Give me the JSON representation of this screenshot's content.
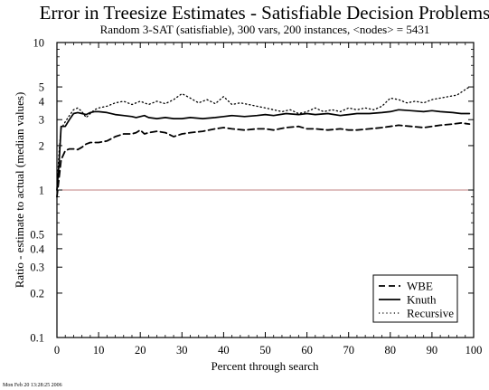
{
  "chart_data": {
    "type": "line",
    "title": "Error in Treesize Estimates - Satisfiable Decision Problems",
    "subtitle": "Random 3-SAT (satisfiable), 300 vars, 200 instances, <nodes> = 5431",
    "xlabel": "Percent through search",
    "ylabel": "Ratio - estimate to actual (median values)",
    "xlim": [
      0,
      100
    ],
    "ylim": [
      0.1,
      10
    ],
    "yscale": "log",
    "x_ticks": [
      "0",
      "10",
      "20",
      "30",
      "40",
      "50",
      "60",
      "70",
      "80",
      "90",
      "100"
    ],
    "y_ticks": [
      {
        "value": 0.1,
        "label": "0.1"
      },
      {
        "value": 0.2,
        "label": "0.2"
      },
      {
        "value": 0.3,
        "label": "0.3"
      },
      {
        "value": 0.4,
        "label": "0.4"
      },
      {
        "value": 0.5,
        "label": "0.5"
      },
      {
        "value": 1,
        "label": "1"
      },
      {
        "value": 2,
        "label": "2"
      },
      {
        "value": 3,
        "label": "3"
      },
      {
        "value": 4,
        "label": "4"
      },
      {
        "value": 5,
        "label": "5"
      },
      {
        "value": 10,
        "label": "10"
      }
    ],
    "reference_line": {
      "y": 1,
      "color": "#c08080"
    },
    "grid": false,
    "legend_position": "bottom-right",
    "series": [
      {
        "name": "WBE",
        "dash": "dashed",
        "x": [
          0,
          0.5,
          1,
          2,
          3,
          4,
          5,
          6,
          7,
          8,
          9,
          10,
          12,
          14,
          16,
          18,
          19,
          20,
          21,
          22,
          24,
          26,
          28,
          30,
          32,
          35,
          38,
          40,
          42,
          45,
          48,
          50,
          52,
          55,
          58,
          60,
          62,
          65,
          68,
          70,
          72,
          75,
          78,
          80,
          82,
          85,
          88,
          90,
          92,
          95,
          97,
          99
        ],
        "y": [
          0.9,
          1.2,
          1.6,
          1.85,
          1.9,
          1.9,
          1.88,
          1.95,
          2.05,
          2.1,
          2.1,
          2.1,
          2.15,
          2.3,
          2.4,
          2.4,
          2.45,
          2.55,
          2.4,
          2.45,
          2.5,
          2.45,
          2.3,
          2.4,
          2.45,
          2.5,
          2.6,
          2.65,
          2.6,
          2.55,
          2.6,
          2.6,
          2.55,
          2.65,
          2.7,
          2.6,
          2.6,
          2.55,
          2.6,
          2.55,
          2.55,
          2.6,
          2.65,
          2.7,
          2.75,
          2.7,
          2.65,
          2.7,
          2.75,
          2.8,
          2.85,
          2.8
        ]
      },
      {
        "name": "Knuth",
        "dash": "solid",
        "x": [
          0,
          0.5,
          1,
          2,
          3,
          4,
          5,
          6,
          7,
          8,
          9,
          10,
          12,
          14,
          16,
          18,
          19,
          20,
          21,
          22,
          24,
          26,
          28,
          30,
          32,
          35,
          38,
          40,
          42,
          45,
          48,
          50,
          52,
          55,
          58,
          60,
          62,
          65,
          68,
          70,
          72,
          75,
          78,
          80,
          82,
          85,
          88,
          90,
          92,
          95,
          97,
          99
        ],
        "y": [
          1.0,
          1.5,
          2.7,
          2.7,
          3.0,
          3.3,
          3.35,
          3.3,
          3.25,
          3.35,
          3.4,
          3.4,
          3.35,
          3.25,
          3.2,
          3.15,
          3.1,
          3.15,
          3.2,
          3.1,
          3.05,
          3.1,
          3.05,
          3.05,
          3.1,
          3.05,
          3.1,
          3.15,
          3.2,
          3.15,
          3.2,
          3.25,
          3.2,
          3.3,
          3.25,
          3.3,
          3.25,
          3.3,
          3.2,
          3.25,
          3.3,
          3.3,
          3.35,
          3.4,
          3.5,
          3.45,
          3.4,
          3.45,
          3.4,
          3.35,
          3.3,
          3.3
        ]
      },
      {
        "name": "Recursive",
        "dash": "dotted",
        "x": [
          0,
          0.5,
          1,
          2,
          3,
          4,
          5,
          6,
          7,
          8,
          9,
          10,
          12,
          14,
          16,
          18,
          20,
          22,
          24,
          26,
          28,
          30,
          32,
          34,
          36,
          38,
          40,
          42,
          44,
          46,
          48,
          50,
          52,
          54,
          56,
          58,
          60,
          62,
          64,
          66,
          68,
          70,
          72,
          74,
          76,
          78,
          80,
          82,
          84,
          86,
          88,
          90,
          92,
          94,
          96,
          97,
          98,
          99
        ],
        "y": [
          1.0,
          1.8,
          2.6,
          2.9,
          3.2,
          3.5,
          3.6,
          3.4,
          3.1,
          3.3,
          3.5,
          3.6,
          3.7,
          3.9,
          4.0,
          3.8,
          4.0,
          3.8,
          4.0,
          3.85,
          4.1,
          4.5,
          4.2,
          3.9,
          4.1,
          3.85,
          4.3,
          3.8,
          3.9,
          3.8,
          3.7,
          3.6,
          3.5,
          3.4,
          3.5,
          3.3,
          3.4,
          3.6,
          3.4,
          3.5,
          3.4,
          3.6,
          3.5,
          3.6,
          3.5,
          3.7,
          4.2,
          4.1,
          3.9,
          4.0,
          3.9,
          4.1,
          4.2,
          4.3,
          4.4,
          4.6,
          4.8,
          5.0
        ]
      }
    ],
    "footnote": "Mon Feb 20 13:28:25 2006"
  }
}
